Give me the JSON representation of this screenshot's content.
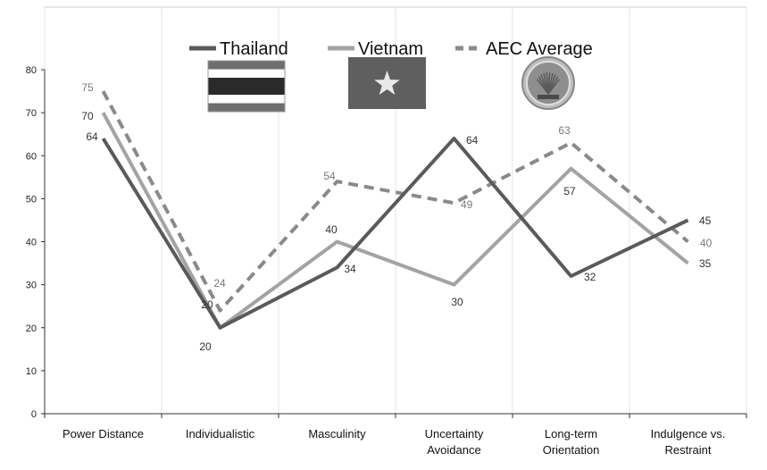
{
  "chart_data": {
    "type": "line",
    "categories": [
      "Power Distance",
      "Individualistic",
      "Masculinity",
      "Uncertainty Avoidance",
      "Long-term Orientation",
      "Indulgence vs. Restraint"
    ],
    "category_lines": [
      [
        "Power Distance"
      ],
      [
        "Individualistic"
      ],
      [
        "Masculinity"
      ],
      [
        "Uncertainty",
        "Avoidance"
      ],
      [
        "Long-term",
        "Orientation"
      ],
      [
        "Indulgence vs.",
        "Restraint"
      ]
    ],
    "series": [
      {
        "name": "Thailand",
        "values": [
          64,
          20,
          34,
          64,
          32,
          45
        ],
        "color": "#5a5a5a",
        "dash": "solid"
      },
      {
        "name": "Vietnam",
        "values": [
          70,
          20,
          40,
          30,
          57,
          35
        ],
        "color": "#a3a3a3",
        "dash": "solid"
      },
      {
        "name": "AEC Average",
        "values": [
          75,
          24,
          54,
          49,
          63,
          40
        ],
        "color": "#8a8a8a",
        "dash": "dashed"
      }
    ],
    "ylim": [
      0,
      80
    ],
    "yticks": [
      0,
      10,
      20,
      30,
      40,
      50,
      60,
      70,
      80
    ],
    "grid": true,
    "legend_position": "top-center",
    "legend_icons": [
      "thailand-flag",
      "vietnam-flag",
      "asean-emblem"
    ]
  }
}
